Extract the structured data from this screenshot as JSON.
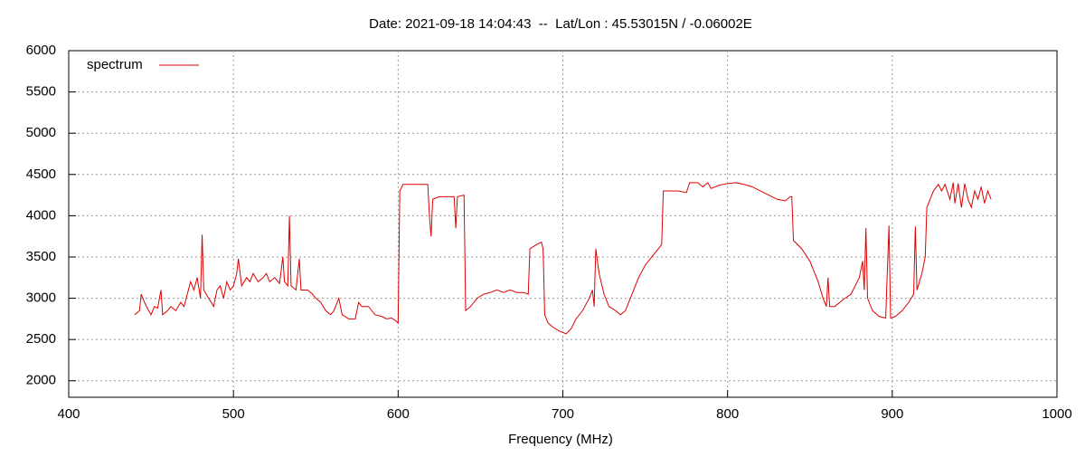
{
  "chart_data": {
    "type": "line",
    "title": "Date: 2021-09-18 14:04:43  --  Lat/Lon : 45.53015N / -0.06002E",
    "x_label": "Frequency (MHz)",
    "xlim": [
      400,
      1000
    ],
    "ylim": [
      1800,
      6000
    ],
    "xticks": [
      400,
      500,
      600,
      700,
      800,
      900,
      1000
    ],
    "yticks": [
      2000,
      2500,
      3000,
      3500,
      4000,
      4500,
      5000,
      5500,
      6000
    ],
    "grid": true,
    "legend": "upper left",
    "x": [
      440,
      443,
      444,
      446,
      448,
      450,
      452,
      454,
      456,
      457,
      460,
      462,
      465,
      468,
      470,
      472,
      474,
      476,
      478,
      480,
      481,
      482,
      485,
      488,
      490,
      492,
      494,
      496,
      498,
      500,
      502,
      503,
      505,
      508,
      510,
      512,
      515,
      518,
      520,
      522,
      525,
      528,
      530,
      531,
      533,
      534,
      535,
      538,
      540,
      541,
      545,
      548,
      550,
      553,
      556,
      559,
      561,
      563,
      564,
      566,
      570,
      574,
      576,
      578,
      582,
      584,
      586,
      590,
      593,
      596,
      599,
      600,
      601,
      603,
      610,
      618,
      619,
      620,
      621,
      625,
      630,
      634,
      635,
      636,
      640,
      641,
      644,
      648,
      652,
      656,
      660,
      664,
      668,
      672,
      676,
      679,
      680,
      684,
      687,
      688,
      689,
      691,
      694,
      698,
      702,
      705,
      708,
      712,
      716,
      718,
      719,
      720,
      722,
      725,
      728,
      732,
      735,
      738,
      742,
      746,
      750,
      754,
      758,
      760,
      761,
      765,
      770,
      775,
      777,
      782,
      785,
      788,
      790,
      795,
      800,
      805,
      810,
      815,
      820,
      825,
      830,
      835,
      838,
      839,
      840,
      845,
      850,
      855,
      858,
      860,
      861,
      862,
      865,
      870,
      875,
      880,
      882,
      883,
      884,
      885,
      888,
      892,
      896,
      898,
      899,
      902,
      906,
      910,
      913,
      914,
      915,
      918,
      920,
      921,
      923,
      925,
      928,
      930,
      932,
      935,
      937,
      938,
      940,
      942,
      944,
      946,
      948,
      950,
      952,
      954,
      956,
      958,
      960
    ],
    "series": [
      {
        "name": "spectrum",
        "color": "#dd0000",
        "values": [
          2800,
          2850,
          3050,
          2950,
          2870,
          2800,
          2900,
          2880,
          3100,
          2800,
          2850,
          2900,
          2850,
          2950,
          2900,
          3050,
          3200,
          3100,
          3250,
          3000,
          3770,
          3100,
          3000,
          2900,
          3100,
          3150,
          3000,
          3200,
          3100,
          3150,
          3300,
          3480,
          3150,
          3250,
          3200,
          3300,
          3200,
          3250,
          3300,
          3200,
          3250,
          3180,
          3500,
          3200,
          3150,
          4000,
          3150,
          3100,
          3480,
          3100,
          3100,
          3050,
          3000,
          2950,
          2850,
          2800,
          2850,
          2950,
          3000,
          2800,
          2750,
          2750,
          2950,
          2900,
          2900,
          2850,
          2800,
          2780,
          2750,
          2760,
          2720,
          2700,
          4300,
          4380,
          4380,
          4380,
          4000,
          3750,
          4200,
          4230,
          4230,
          4230,
          3850,
          4230,
          4250,
          2850,
          2900,
          3000,
          3050,
          3070,
          3100,
          3070,
          3100,
          3070,
          3070,
          3050,
          3600,
          3650,
          3680,
          3600,
          2800,
          2700,
          2650,
          2600,
          2570,
          2630,
          2750,
          2850,
          3000,
          3100,
          2900,
          3600,
          3300,
          3050,
          2900,
          2850,
          2800,
          2850,
          3050,
          3250,
          3400,
          3500,
          3600,
          3650,
          4300,
          4300,
          4300,
          4280,
          4400,
          4400,
          4350,
          4400,
          4330,
          4370,
          4390,
          4400,
          4380,
          4350,
          4300,
          4250,
          4200,
          4180,
          4230,
          4230,
          3700,
          3600,
          3450,
          3200,
          3000,
          2900,
          3250,
          2900,
          2900,
          2980,
          3050,
          3250,
          3450,
          3100,
          3850,
          3000,
          2850,
          2780,
          2760,
          3880,
          2760,
          2780,
          2850,
          2950,
          3050,
          3870,
          3100,
          3300,
          3500,
          4100,
          4200,
          4300,
          4380,
          4300,
          4380,
          4200,
          4400,
          4150,
          4390,
          4100,
          4390,
          4200,
          4100,
          4300,
          4200,
          4350,
          4150,
          4300,
          4200
        ]
      }
    ]
  }
}
